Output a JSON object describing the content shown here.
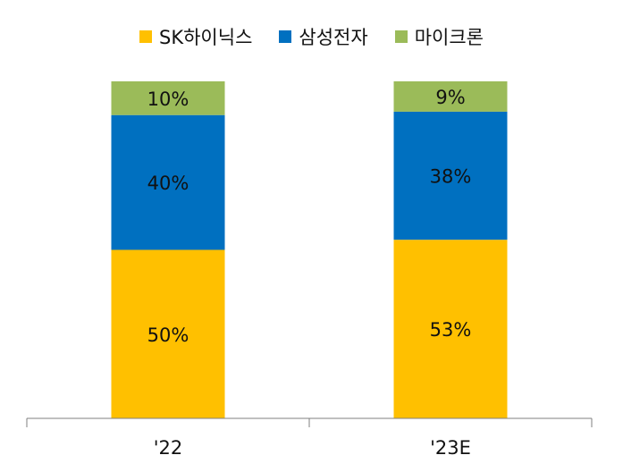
{
  "chart_data": {
    "type": "bar",
    "stacked": true,
    "categories": [
      "'22",
      "'23E"
    ],
    "series": [
      {
        "name": "SK하이닉스",
        "values": [
          50,
          53
        ],
        "labels": [
          "50%",
          "53%"
        ],
        "color": "#FFC000"
      },
      {
        "name": "삼성전자",
        "values": [
          40,
          38
        ],
        "labels": [
          "40%",
          "38%"
        ],
        "color": "#0070C0"
      },
      {
        "name": "마이크론",
        "values": [
          10,
          9
        ],
        "labels": [
          "10%",
          "9%"
        ],
        "color": "#9BBB59"
      }
    ],
    "ylim": [
      0,
      100
    ],
    "legend_position": "top",
    "grid": false
  }
}
